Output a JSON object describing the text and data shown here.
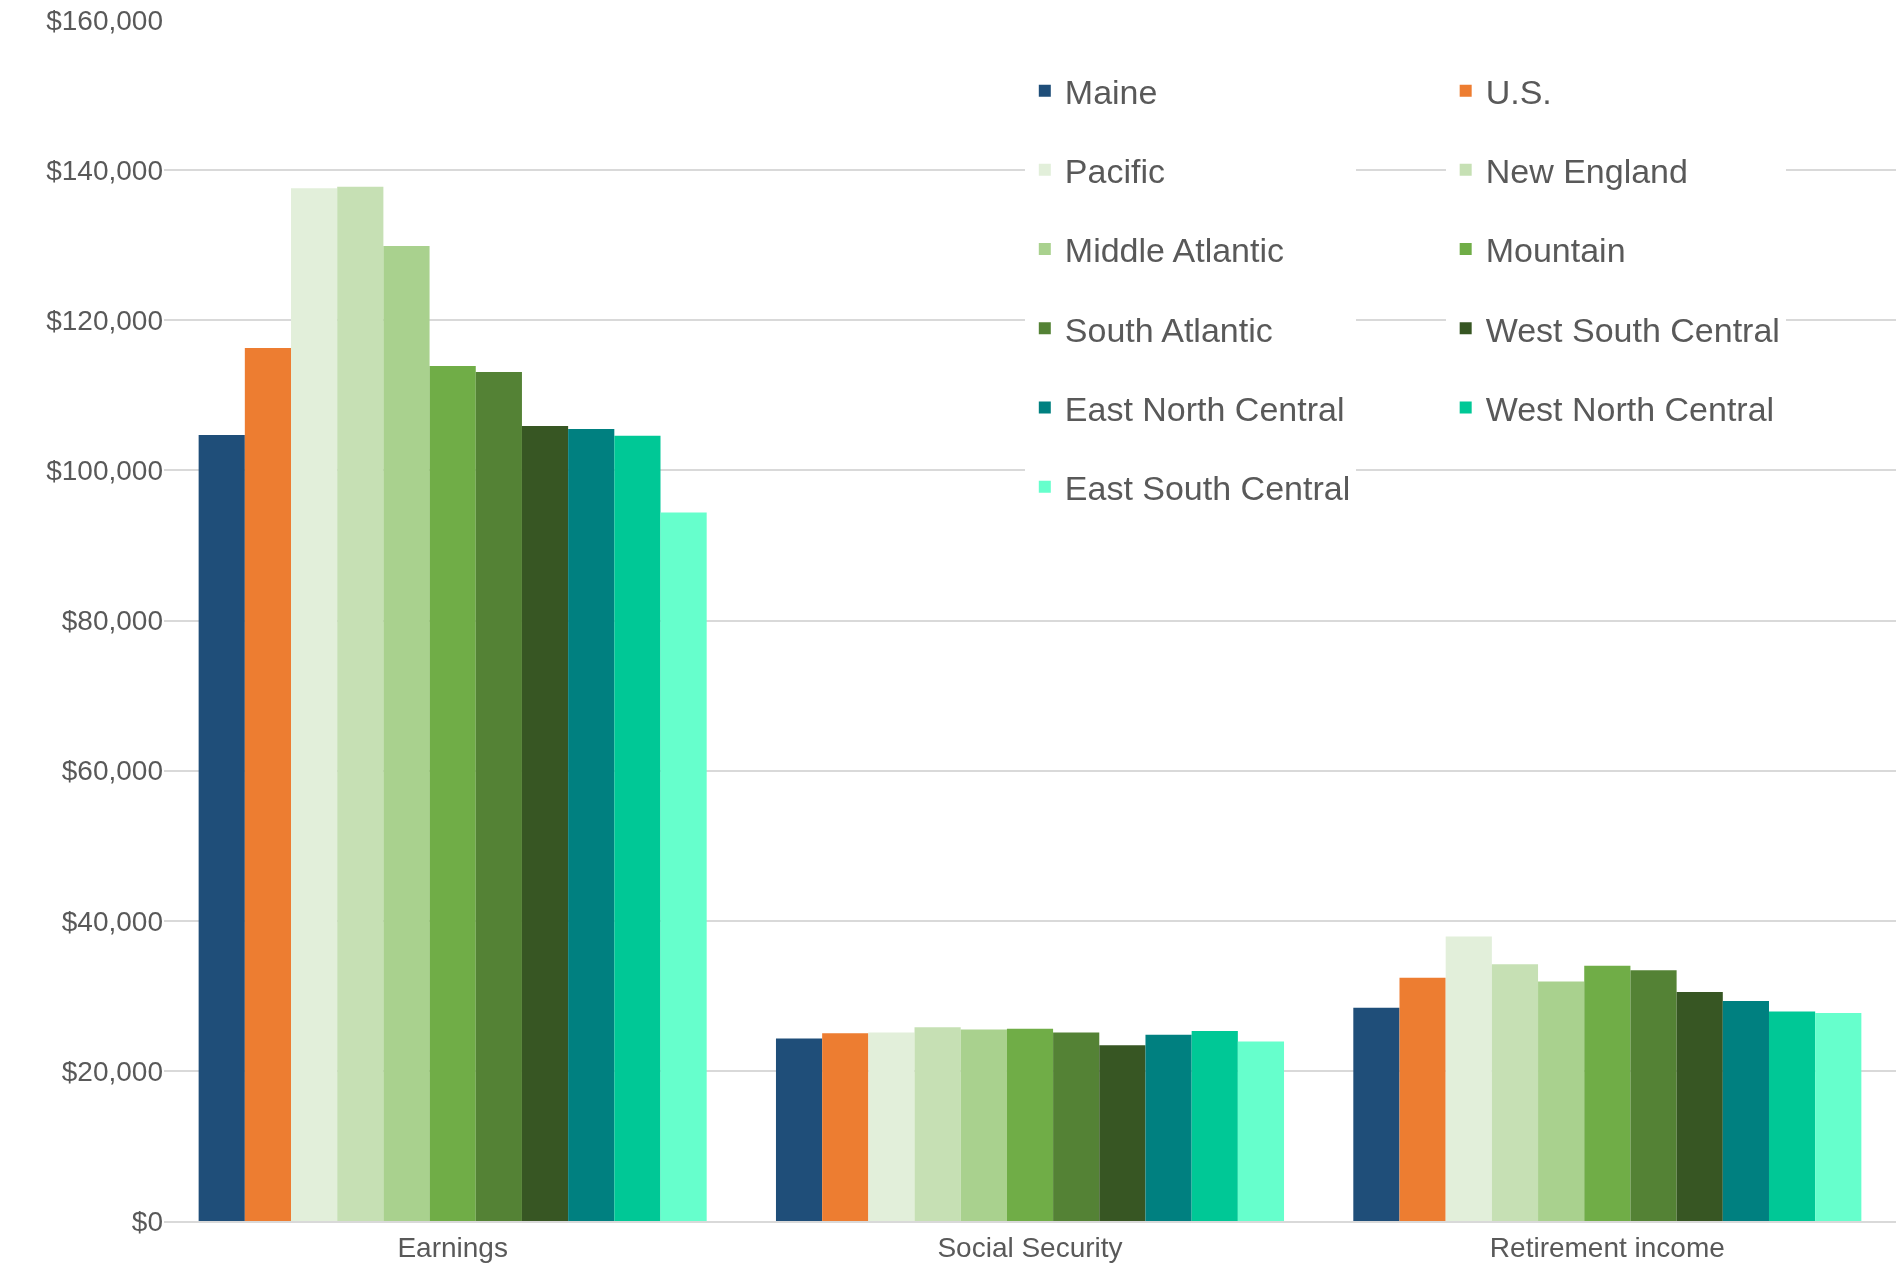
{
  "chart_data": {
    "type": "bar",
    "categories": [
      "Earnings",
      "Social Security",
      "Retirement income"
    ],
    "series": [
      {
        "name": "Maine",
        "color": "#1f4e79",
        "values": [
          104700,
          24300,
          28400
        ]
      },
      {
        "name": "U.S.",
        "color": "#ed7d31",
        "values": [
          116300,
          25000,
          32400
        ]
      },
      {
        "name": "Pacific",
        "color": "#e2efda",
        "values": [
          137600,
          25100,
          37900
        ]
      },
      {
        "name": "New England",
        "color": "#c6e0b4",
        "values": [
          137800,
          25800,
          34200
        ]
      },
      {
        "name": "Middle Atlantic",
        "color": "#a9d18e",
        "values": [
          129900,
          25500,
          31900
        ]
      },
      {
        "name": "Mountain",
        "color": "#70ad47",
        "values": [
          113900,
          25600,
          34000
        ]
      },
      {
        "name": "South Atlantic",
        "color": "#548235",
        "values": [
          113100,
          25100,
          33400
        ]
      },
      {
        "name": "West South Central",
        "color": "#375623",
        "values": [
          105900,
          23400,
          30500
        ]
      },
      {
        "name": "East North Central",
        "color": "#008080",
        "values": [
          105500,
          24800,
          29300
        ]
      },
      {
        "name": "West North Central",
        "color": "#00c896",
        "values": [
          104600,
          25300,
          27900
        ]
      },
      {
        "name": "East South Central",
        "color": "#66ffcc",
        "values": [
          94400,
          23900,
          27700
        ]
      }
    ],
    "ylim": [
      0,
      160000
    ],
    "yticks": [
      {
        "value": 0,
        "label": "$0"
      },
      {
        "value": 20000,
        "label": "$20,000"
      },
      {
        "value": 40000,
        "label": "$40,000"
      },
      {
        "value": 60000,
        "label": "$60,000"
      },
      {
        "value": 80000,
        "label": "$80,000"
      },
      {
        "value": 100000,
        "label": "$100,000"
      },
      {
        "value": 120000,
        "label": "$120,000"
      },
      {
        "value": 140000,
        "label": "$140,000"
      },
      {
        "value": 160000,
        "label": "$160,000"
      }
    ],
    "grid": "y",
    "legend": "top right"
  }
}
